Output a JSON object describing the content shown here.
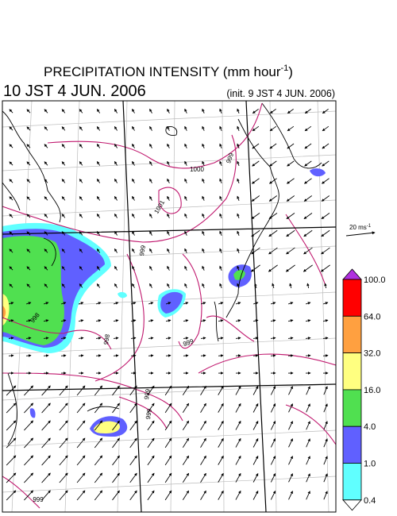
{
  "map": {
    "title": {
      "main": "PRECIPITATION INTENSITY (mm hour",
      "superscript": "-1",
      "end": ")"
    },
    "valid_time": "10 JST 4 JUN. 2006",
    "init_time": "(init. 9 JST 4 JUN. 2006)",
    "vector_key": {
      "main": "20 ms",
      "superscript": "-1"
    },
    "legend": {
      "top_color": "#b030e0",
      "bottom_color": "#ffffff",
      "levels": [
        {
          "label": "100.0",
          "color": "#ff0000"
        },
        {
          "label": "64.0",
          "color": "#ffa040"
        },
        {
          "label": "32.0",
          "color": "#ffff80"
        },
        {
          "label": "16.0",
          "color": "#50e050"
        },
        {
          "label": "4.0",
          "color": "#6060ff"
        },
        {
          "label": "1.0",
          "color": "#60ffff"
        },
        {
          "label": "0.4"
        }
      ]
    },
    "contour_labels": [
      1000,
      999,
      1001,
      999,
      998,
      998,
      999,
      999,
      999,
      999
    ]
  }
}
